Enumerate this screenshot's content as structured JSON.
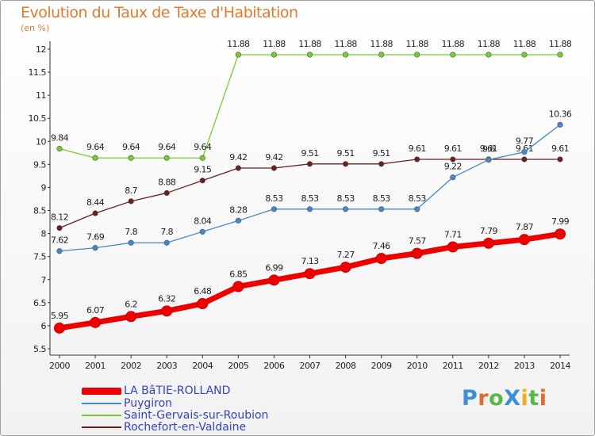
{
  "title": "Evolution du Taux de Taxe d'Habitation",
  "unit": "(en %)",
  "brand": "ProXiti",
  "chart_data": {
    "type": "line",
    "x": [
      "2000",
      "2001",
      "2002",
      "2003",
      "2004",
      "2005",
      "2006",
      "2007",
      "2008",
      "2009",
      "2010",
      "2011",
      "2012",
      "2013",
      "2014"
    ],
    "ylim": [
      5.5,
      12
    ],
    "yticks": [
      "5.5",
      "6",
      "6.5",
      "7",
      "7.5",
      "8",
      "8.5",
      "9",
      "9.5",
      "10",
      "10.5",
      "11",
      "11.5",
      "12"
    ],
    "grid": false,
    "legend_position": "bottom-left",
    "series": [
      {
        "name": "Saint-Gervais-sur-Roubion",
        "color": "#77cc33",
        "values": [
          9.84,
          9.64,
          9.64,
          9.64,
          9.64,
          11.88,
          11.88,
          11.88,
          11.88,
          11.88,
          11.88,
          11.88,
          11.88,
          11.88,
          11.88
        ],
        "labels": [
          "9.84",
          "9.64",
          "9.64",
          "9.64",
          "9.64",
          "11.88",
          "11.88",
          "11.88",
          "11.88",
          "11.88",
          "11.88",
          "11.88",
          "11.88",
          "11.88",
          "11.88"
        ]
      },
      {
        "name": "Rochefort-en-Valdaine",
        "color": "#6b1f1f",
        "values": [
          8.12,
          8.44,
          8.7,
          8.88,
          9.15,
          9.42,
          9.42,
          9.51,
          9.51,
          9.51,
          9.61,
          9.61,
          9.61,
          9.61,
          9.61
        ],
        "labels": [
          "8.12",
          "8.44",
          "8.7",
          "8.88",
          "9.15",
          "9.42",
          "9.42",
          "9.51",
          "9.51",
          "9.51",
          "9.61",
          "9.61",
          "9.61",
          "9.61",
          "9.61"
        ]
      },
      {
        "name": "Puygiron",
        "color": "#4488cc",
        "values": [
          7.62,
          7.69,
          7.8,
          7.8,
          8.04,
          8.28,
          8.53,
          8.53,
          8.53,
          8.53,
          8.53,
          9.22,
          9.6,
          9.77,
          10.36
        ],
        "labels": [
          "7.62",
          "7.69",
          "7.8",
          "7.8",
          "8.04",
          "8.28",
          "8.53",
          "8.53",
          "8.53",
          "8.53",
          "8.53",
          "9.22",
          "9.6",
          "9.77",
          "10.36"
        ]
      },
      {
        "name": "LA BâTIE-ROLLAND",
        "color": "#ee0000",
        "values": [
          5.95,
          6.07,
          6.2,
          6.32,
          6.48,
          6.85,
          6.99,
          7.13,
          7.27,
          7.46,
          7.57,
          7.71,
          7.79,
          7.87,
          7.99
        ],
        "labels": [
          "5.95",
          "6.07",
          "6.2",
          "6.32",
          "6.48",
          "6.85",
          "6.99",
          "7.13",
          "7.27",
          "7.46",
          "7.57",
          "7.71",
          "7.79",
          "7.87",
          "7.99"
        ]
      }
    ]
  }
}
